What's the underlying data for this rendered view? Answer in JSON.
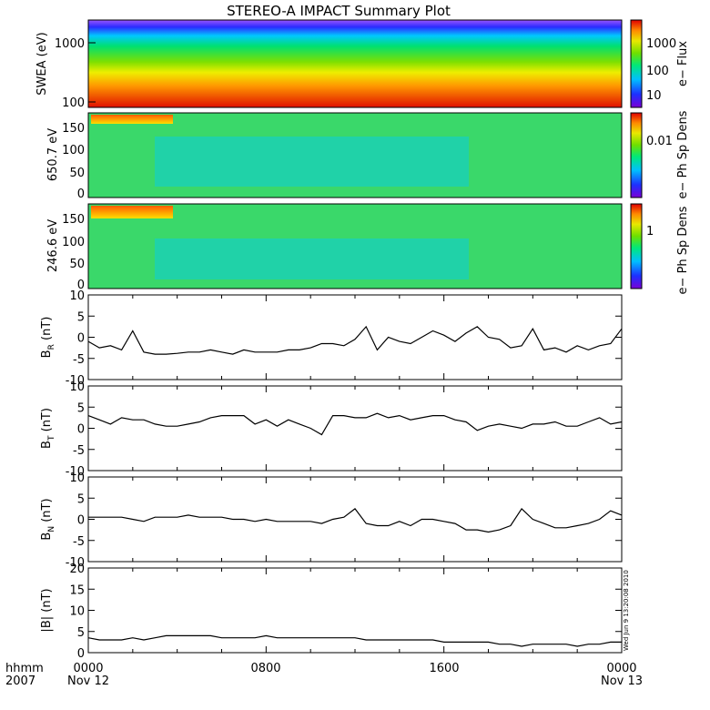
{
  "title": "STEREO-A IMPACT Summary Plot",
  "timestamp": "Wed Jun  9 13:20:08 2010",
  "x_axis": {
    "row1_label": "hhmm",
    "row2_label": "2007",
    "ticks": [
      {
        "hhmm": "0000",
        "date": "Nov 12"
      },
      {
        "hhmm": "0800",
        "date": ""
      },
      {
        "hhmm": "1600",
        "date": ""
      },
      {
        "hhmm": "0000",
        "date": "Nov 13"
      }
    ]
  },
  "colors": {
    "background": "#ffffff",
    "axes": "#000000",
    "line": "#000000",
    "spectrogram_scale": [
      "#7a00d6",
      "#1d30ff",
      "#00bfff",
      "#00e87a",
      "#6ee000",
      "#e8e800",
      "#ff8a00",
      "#e00000"
    ]
  },
  "chart_data": [
    {
      "type": "heatmap",
      "panel": "swea",
      "ylabel": "SWEA (eV)",
      "yscale": "log",
      "ylim": [
        100,
        2000
      ],
      "yticks": [
        "1000",
        "100"
      ],
      "colorbar_label": "e− Flux",
      "colorbar_ticks": [
        "1000",
        "100",
        "10"
      ],
      "description_values": "energy spectrogram, high flux at low energy (red ~100 eV) falling to low flux (blue ~1500 eV)"
    },
    {
      "type": "heatmap",
      "panel": "pad650",
      "ylabel": "650.7 eV",
      "ylim": [
        0,
        180
      ],
      "yticks": [
        "150",
        "100",
        "50",
        "0"
      ],
      "colorbar_label": "e− Ph Sp Dens",
      "colorbar_ticks": [
        "0.01"
      ]
    },
    {
      "type": "heatmap",
      "panel": "pad246",
      "ylabel": "246.6 eV",
      "ylim": [
        0,
        180
      ],
      "yticks": [
        "150",
        "100",
        "50",
        "0"
      ],
      "colorbar_label": "e− Ph Sp Dens",
      "colorbar_ticks": [
        "1"
      ]
    },
    {
      "type": "line",
      "panel": "br",
      "ylabel": "B",
      "ylabel_sub": "R",
      "ylabel_unit": "(nT)",
      "ylim": [
        -10,
        10
      ],
      "yticks": [
        "10",
        "5",
        "0",
        "-5",
        "-10"
      ],
      "x_hours": [
        0,
        0.5,
        1,
        1.5,
        2,
        2.5,
        3,
        3.5,
        4,
        4.5,
        5,
        5.5,
        6,
        6.5,
        7,
        7.5,
        8,
        8.5,
        9,
        9.5,
        10,
        10.5,
        11,
        11.5,
        12,
        12.5,
        13,
        13.5,
        14,
        14.5,
        15,
        15.5,
        16,
        16.5,
        17,
        17.5,
        18,
        18.5,
        19,
        19.5,
        20,
        20.5,
        21,
        21.5,
        22,
        22.5,
        23,
        23.5,
        24
      ],
      "values": [
        -1,
        -2.5,
        -2,
        -3,
        1.5,
        -3.5,
        -4,
        -4,
        -3.8,
        -3.5,
        -3.5,
        -3,
        -3.5,
        -4,
        -3,
        -3.5,
        -3.5,
        -3.5,
        -3,
        -3,
        -2.5,
        -1.5,
        -1.5,
        -2,
        -0.5,
        2.5,
        -3,
        0,
        -1,
        -1.5,
        0,
        1.5,
        0.5,
        -1,
        1,
        2.5,
        0,
        -0.5,
        -2.5,
        -2,
        2,
        -3,
        -2.5,
        -3.5,
        -2,
        -3,
        -2,
        -1.5,
        2
      ]
    },
    {
      "type": "line",
      "panel": "bt",
      "ylabel": "B",
      "ylabel_sub": "T",
      "ylabel_unit": "(nT)",
      "ylim": [
        -10,
        10
      ],
      "yticks": [
        "10",
        "5",
        "0",
        "-5",
        "-10"
      ],
      "x_hours": [
        0,
        0.5,
        1,
        1.5,
        2,
        2.5,
        3,
        3.5,
        4,
        4.5,
        5,
        5.5,
        6,
        6.5,
        7,
        7.5,
        8,
        8.5,
        9,
        9.5,
        10,
        10.5,
        11,
        11.5,
        12,
        12.5,
        13,
        13.5,
        14,
        14.5,
        15,
        15.5,
        16,
        16.5,
        17,
        17.5,
        18,
        18.5,
        19,
        19.5,
        20,
        20.5,
        21,
        21.5,
        22,
        22.5,
        23,
        23.5,
        24
      ],
      "values": [
        3,
        2,
        1,
        2.5,
        2,
        2,
        1,
        0.5,
        0.5,
        1,
        1.5,
        2.5,
        3,
        3,
        3,
        1,
        2,
        0.5,
        2,
        1,
        0,
        -1.5,
        3,
        3,
        2.5,
        2.5,
        3.5,
        2.5,
        3,
        2,
        2.5,
        3,
        3,
        2,
        1.5,
        -0.5,
        0.5,
        1,
        0.5,
        0,
        1,
        1,
        1.5,
        0.5,
        0.5,
        1.5,
        2.5,
        1,
        1.5
      ]
    },
    {
      "type": "line",
      "panel": "bn",
      "ylabel": "B",
      "ylabel_sub": "N",
      "ylabel_unit": "(nT)",
      "ylim": [
        -10,
        10
      ],
      "yticks": [
        "10",
        "5",
        "0",
        "-5",
        "-10"
      ],
      "x_hours": [
        0,
        0.5,
        1,
        1.5,
        2,
        2.5,
        3,
        3.5,
        4,
        4.5,
        5,
        5.5,
        6,
        6.5,
        7,
        7.5,
        8,
        8.5,
        9,
        9.5,
        10,
        10.5,
        11,
        11.5,
        12,
        12.5,
        13,
        13.5,
        14,
        14.5,
        15,
        15.5,
        16,
        16.5,
        17,
        17.5,
        18,
        18.5,
        19,
        19.5,
        20,
        20.5,
        21,
        21.5,
        22,
        22.5,
        23,
        23.5,
        24
      ],
      "values": [
        0.5,
        0.5,
        0.5,
        0.5,
        0,
        -0.5,
        0.5,
        0.5,
        0.5,
        1,
        0.5,
        0.5,
        0.5,
        0,
        0,
        -0.5,
        0,
        -0.5,
        -0.5,
        -0.5,
        -0.5,
        -1,
        0,
        0.5,
        2.5,
        -1,
        -1.5,
        -1.5,
        -0.5,
        -1.5,
        0,
        0,
        -0.5,
        -1,
        -2.5,
        -2.5,
        -3,
        -2.5,
        -1.5,
        2.5,
        0,
        -1,
        -2,
        -2,
        -1.5,
        -1,
        0,
        2,
        1
      ]
    },
    {
      "type": "line",
      "panel": "bmag",
      "ylabel": "|B| (nT)",
      "ylim": [
        0,
        20
      ],
      "yticks": [
        "20",
        "15",
        "10",
        "5",
        "0"
      ],
      "x_hours": [
        0,
        0.5,
        1,
        1.5,
        2,
        2.5,
        3,
        3.5,
        4,
        4.5,
        5,
        5.5,
        6,
        6.5,
        7,
        7.5,
        8,
        8.5,
        9,
        9.5,
        10,
        10.5,
        11,
        11.5,
        12,
        12.5,
        13,
        13.5,
        14,
        14.5,
        15,
        15.5,
        16,
        16.5,
        17,
        17.5,
        18,
        18.5,
        19,
        19.5,
        20,
        20.5,
        21,
        21.5,
        22,
        22.5,
        23,
        23.5,
        24
      ],
      "values": [
        3.5,
        3,
        3,
        3,
        3.5,
        3,
        3.5,
        4,
        4,
        4,
        4,
        4,
        3.5,
        3.5,
        3.5,
        3.5,
        4,
        3.5,
        3.5,
        3.5,
        3.5,
        3.5,
        3.5,
        3.5,
        3.5,
        3,
        3,
        3,
        3,
        3,
        3,
        3,
        2.5,
        2.5,
        2.5,
        2.5,
        2.5,
        2,
        2,
        1.5,
        2,
        2,
        2,
        2,
        1.5,
        2,
        2,
        2.5,
        2.5
      ]
    }
  ]
}
